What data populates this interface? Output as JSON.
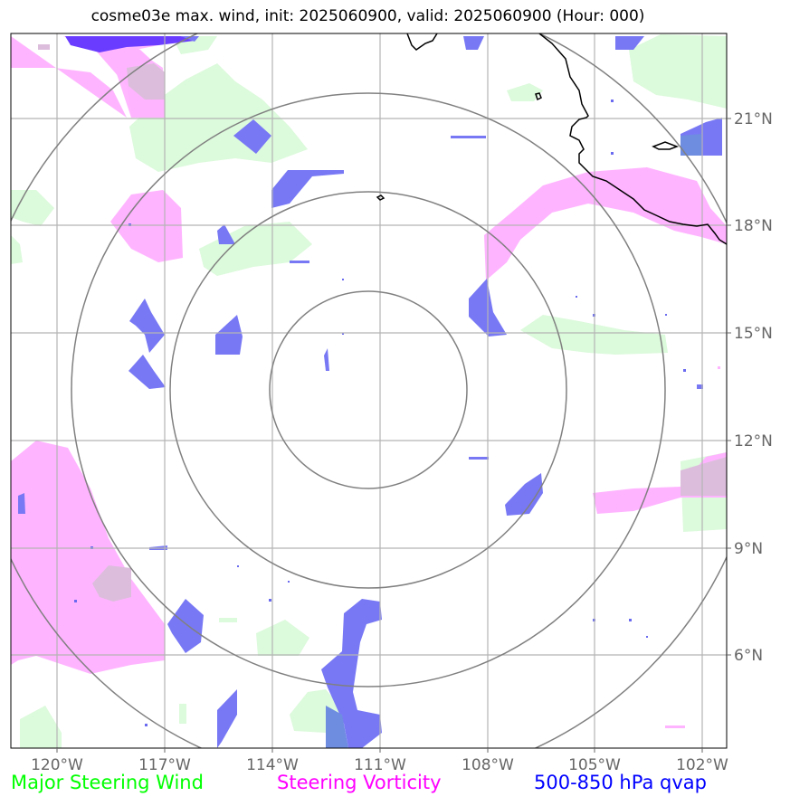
{
  "title": "cosme03e max. wind, init: 2025060900, valid: 2025060900 (Hour: 000)",
  "map": {
    "longitude_labels": [
      "120°W",
      "117°W",
      "114°W",
      "111°W",
      "108°W",
      "105°W",
      "102°W"
    ],
    "latitude_labels": [
      "21°N",
      "18°N",
      "15°N",
      "12°N",
      "9°N",
      "6°N"
    ],
    "range_rings": 4
  },
  "legend": [
    {
      "label": "Major Steering Wind",
      "color": "#00ff00"
    },
    {
      "label": "Steering Vorticity",
      "color": "#ff00ff"
    },
    {
      "label": "500-850 hPa qvap",
      "color": "#0000ff"
    }
  ],
  "colors": {
    "wind_fill": "#dcfadc",
    "vorticity_fill": "#ffb4ff",
    "qvap_fill": "#7878f5",
    "qvap_dark": "#6a3cff",
    "grid": "#b4b4b4",
    "rings": "#808080",
    "coast": "#000000"
  }
}
